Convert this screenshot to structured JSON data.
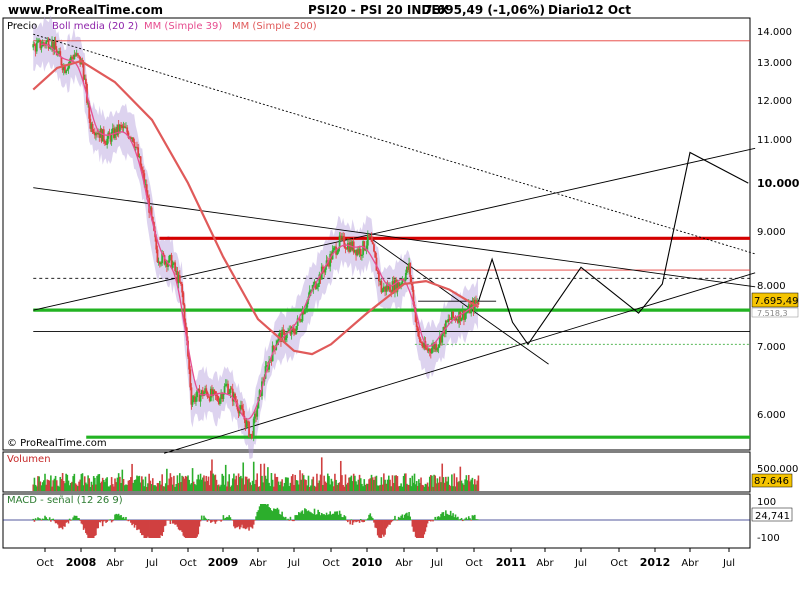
{
  "header": {
    "site": "www.ProRealTime.com",
    "title": "PSI20 - PSI 20 INDEX",
    "quote": "7.695,49 (-1,06%)",
    "period": "Diario",
    "date": "12 Oct"
  },
  "watermark": "© ProRealTime.com",
  "legend": {
    "price": "Precio",
    "boll": "Boll media (20 2)",
    "mm39": "MM (Simple 39)",
    "mm200": "MM (Simple 200)"
  },
  "panels": {
    "volume": {
      "label": "Volumen",
      "ticks": [
        "500.000"
      ],
      "value_badge": "87.646"
    },
    "macd": {
      "label": "MACD - señal (12 26 9)",
      "ticks": [
        "100",
        "0",
        "-100"
      ],
      "value_badge": "24,741"
    }
  },
  "price_axis": {
    "ticks": [
      "14.000",
      "13.000",
      "12.000",
      "11.000",
      "10.000",
      "9.000",
      "8.000",
      "7.000",
      "6.000"
    ],
    "bold_tick": "10.000",
    "current_badge": "7.695,49",
    "badge_small": "7.518,3"
  },
  "colors": {
    "price": "#2e7d32",
    "candle_up": "#32b032",
    "candle_down": "#e04040",
    "bollinger": "#b39ddb",
    "mm39": "#e64d8f",
    "mm200": "#e05a5a",
    "support": "#22b322",
    "resistance": "#d40000",
    "volume_up": "#2cae2c",
    "volume_down": "#d04040",
    "badge": "#f5c400"
  },
  "chart_data": {
    "type": "line",
    "series_name": "PSI20",
    "x_ticks": [
      "Oct",
      "2008",
      "Abr",
      "Jul",
      "Oct",
      "2009",
      "Abr",
      "Jul",
      "Oct",
      "2010",
      "Abr",
      "Jul",
      "Oct",
      "2011",
      "Abr",
      "Jul",
      "Oct",
      "2012",
      "Abr",
      "Jul"
    ],
    "bold_x_ticks": [
      "2008",
      "2009",
      "2010",
      "2011",
      "2012"
    ],
    "ylim": [
      5400,
      14250
    ],
    "price_points": [
      [
        "2007-09-01",
        13500
      ],
      [
        "2007-10-15",
        13700
      ],
      [
        "2007-11-20",
        12900
      ],
      [
        "2007-12-15",
        13300
      ],
      [
        "2008-01-05",
        13000
      ],
      [
        "2008-01-25",
        11400
      ],
      [
        "2008-03-10",
        11000
      ],
      [
        "2008-04-15",
        11300
      ],
      [
        "2008-05-15",
        11100
      ],
      [
        "2008-06-15",
        9900
      ],
      [
        "2008-07-15",
        8500
      ],
      [
        "2008-08-20",
        8400
      ],
      [
        "2008-09-15",
        7900
      ],
      [
        "2008-10-10",
        6200
      ],
      [
        "2008-11-15",
        6300
      ],
      [
        "2008-12-20",
        6200
      ],
      [
        "2009-01-10",
        6400
      ],
      [
        "2009-02-20",
        6000
      ],
      [
        "2009-03-15",
        5700
      ],
      [
        "2009-04-15",
        6500
      ],
      [
        "2009-05-20",
        7100
      ],
      [
        "2009-07-01",
        7200
      ],
      [
        "2009-08-15",
        7900
      ],
      [
        "2009-10-01",
        8500
      ],
      [
        "2009-10-25",
        8800
      ],
      [
        "2009-11-20",
        8700
      ],
      [
        "2009-12-15",
        8600
      ],
      [
        "2010-01-08",
        8850
      ],
      [
        "2010-02-05",
        7900
      ],
      [
        "2010-03-20",
        8000
      ],
      [
        "2010-04-15",
        8300
      ],
      [
        "2010-05-10",
        7100
      ],
      [
        "2010-06-01",
        6900
      ],
      [
        "2010-07-01",
        7000
      ],
      [
        "2010-08-01",
        7400
      ],
      [
        "2010-09-10",
        7500
      ],
      [
        "2010-10-12",
        7695.49
      ]
    ],
    "mm200_points": [
      [
        "2007-09-01",
        12300
      ],
      [
        "2007-11-01",
        12900
      ],
      [
        "2008-01-01",
        13100
      ],
      [
        "2008-04-01",
        12500
      ],
      [
        "2008-07-01",
        11500
      ],
      [
        "2008-10-01",
        10000
      ],
      [
        "2009-01-01",
        8500
      ],
      [
        "2009-04-01",
        7400
      ],
      [
        "2009-07-01",
        6900
      ],
      [
        "2009-08-15",
        6850
      ],
      [
        "2009-10-01",
        7000
      ],
      [
        "2010-01-01",
        7500
      ],
      [
        "2010-04-01",
        8000
      ],
      [
        "2010-06-01",
        8050
      ],
      [
        "2010-08-01",
        7900
      ],
      [
        "2010-10-12",
        7600
      ]
    ],
    "forecast_points": [
      [
        "2010-10-12",
        7695
      ],
      [
        "2010-11-15",
        8450
      ],
      [
        "2011-01-05",
        7350
      ],
      [
        "2011-02-15",
        7000
      ],
      [
        "2011-07-01",
        8300
      ],
      [
        "2011-11-20",
        7500
      ],
      [
        "2012-01-20",
        8000
      ],
      [
        "2012-04-01",
        10700
      ],
      [
        "2012-08-15",
        10000
      ]
    ],
    "horizontal_levels": [
      {
        "kind": "resistance",
        "value": 8850,
        "from": "2008-07-20",
        "to": "2012-08-31"
      },
      {
        "kind": "support",
        "value": 7550,
        "from": "2007-09-01",
        "to": "2012-08-31"
      },
      {
        "kind": "support",
        "value": 5700,
        "from": "2008-01-15",
        "to": "2012-08-31"
      },
      {
        "kind": "thin_red",
        "value": 13700,
        "from": "2007-09-01",
        "to": "2012-08-31"
      },
      {
        "kind": "thin_red",
        "value": 8250,
        "from": "2010-05-01",
        "to": "2012-08-31"
      },
      {
        "kind": "dashed",
        "value": 8100,
        "from": "2007-09-01",
        "to": "2012-08-31"
      },
      {
        "kind": "black",
        "value": 7200,
        "from": "2007-09-01",
        "to": "2012-08-31"
      },
      {
        "kind": "green_dotted",
        "value": 7000,
        "from": "2010-05-01",
        "to": "2012-08-31"
      }
    ],
    "trend_lines": [
      {
        "kind": "dotted",
        "from": [
          "2007-09-01",
          13900
        ],
        "to": [
          "2012-08-31",
          8550
        ]
      },
      {
        "kind": "solid",
        "from": [
          "2007-09-01",
          9900
        ],
        "to": [
          "2012-08-31",
          7950
        ]
      },
      {
        "kind": "solid",
        "from": [
          "2007-09-01",
          7550
        ],
        "to": [
          "2012-08-31",
          10800
        ]
      },
      {
        "kind": "solid",
        "from": [
          "2008-08-01",
          5500
        ],
        "to": [
          "2012-08-31",
          8200
        ]
      },
      {
        "kind": "solid",
        "from": [
          "2010-01-10",
          8850
        ],
        "to": [
          "2011-04-10",
          6700
        ]
      },
      {
        "kind": "solid",
        "from": [
          "2010-05-10",
          7700
        ],
        "to": [
          "2010-11-25",
          7700
        ]
      }
    ]
  }
}
